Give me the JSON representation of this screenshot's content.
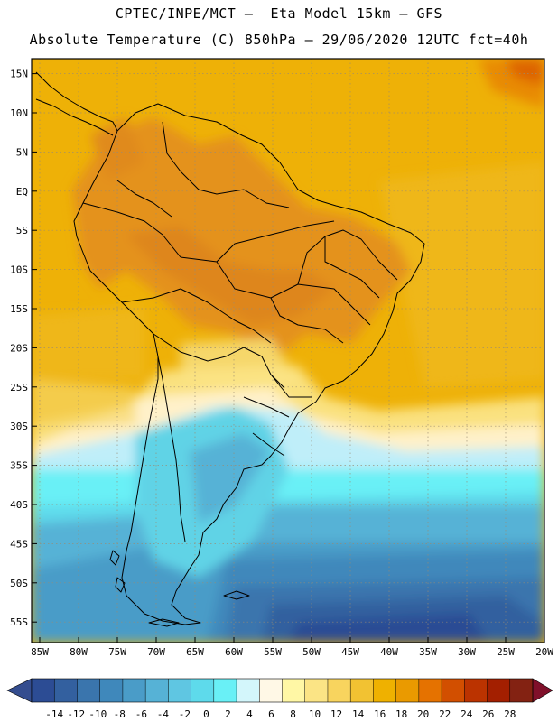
{
  "header": {
    "title_line1": "CPTEC/INPE/MCT –  Eta Model 15km – GFS",
    "title_line2": "Absolute Temperature (C) 850hPa – 29/06/2020 12UTC fct=40h"
  },
  "map": {
    "lat_labels": [
      "15N",
      "10N",
      "5N",
      "EQ",
      "5S",
      "10S",
      "15S",
      "20S",
      "25S",
      "30S",
      "35S",
      "40S",
      "45S",
      "50S",
      "55S"
    ],
    "lon_labels": [
      "85W",
      "80W",
      "75W",
      "70W",
      "65W",
      "60W",
      "55W",
      "50W",
      "45W",
      "40W",
      "35W",
      "30W",
      "25W",
      "20W"
    ]
  },
  "colorbar": {
    "ticks": [
      "-14",
      "-12",
      "-10",
      "-8",
      "-6",
      "-4",
      "-2",
      "0",
      "2",
      "4",
      "6",
      "8",
      "10",
      "12",
      "14",
      "16",
      "18",
      "20",
      "22",
      "24",
      "26",
      "28"
    ],
    "colors": [
      "#2c4c94",
      "#33609f",
      "#3a75ad",
      "#3f88bb",
      "#4a9cc8",
      "#56b2d6",
      "#5fc6e2",
      "#5edaeb",
      "#69f0f6",
      "#d3f6fb",
      "#fff8e6",
      "#fff7a5",
      "#fbe485",
      "#f8d45e",
      "#f2c232",
      "#efb100",
      "#ea9a00",
      "#e57200",
      "#d24f00",
      "#bb3300",
      "#a31f00",
      "#832212"
    ],
    "under_color": "#344d8f",
    "over_color": "#80102a"
  },
  "colors": {
    "ocean_warm": "#eeb107",
    "land_warm": "#e99c18",
    "land_hot": "#de861f",
    "coast_line": "#000000"
  }
}
